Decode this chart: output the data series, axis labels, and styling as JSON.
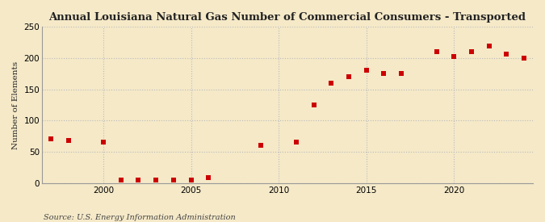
{
  "title": "Annual Louisiana Natural Gas Number of Commercial Consumers - Transported",
  "ylabel": "Number of Elements",
  "source": "Source: U.S. Energy Information Administration",
  "background_color": "#f5e9c8",
  "plot_background_color": "#f5e9c8",
  "marker_color": "#cc0000",
  "marker": "s",
  "marker_size": 4,
  "xlim": [
    1996.5,
    2024.5
  ],
  "ylim": [
    0,
    250
  ],
  "yticks": [
    0,
    50,
    100,
    150,
    200,
    250
  ],
  "xticks": [
    2000,
    2005,
    2010,
    2015,
    2020
  ],
  "grid_color": "#bbbbbb",
  "years": [
    1997,
    1998,
    2000,
    2001,
    2002,
    2003,
    2004,
    2005,
    2006,
    2009,
    2011,
    2012,
    2013,
    2014,
    2015,
    2016,
    2017,
    2019,
    2020,
    2021,
    2022,
    2023,
    2024
  ],
  "values": [
    70,
    68,
    65,
    5,
    5,
    5,
    5,
    5,
    8,
    60,
    65,
    125,
    160,
    170,
    180,
    175,
    175,
    210,
    203,
    210,
    220,
    207,
    200
  ]
}
